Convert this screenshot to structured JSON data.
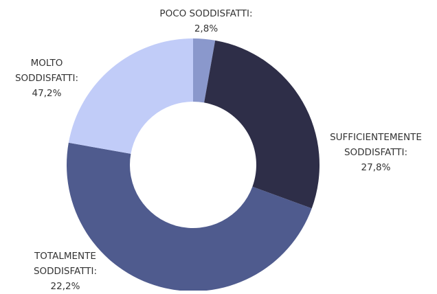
{
  "chart_data": {
    "type": "donut",
    "categories": [
      "POCO SODDISFATTI:",
      "SUFFICIENTEMENTE SODDISFATTI:",
      "MOLTO SODDISFATTI:",
      "TOTALMENTE SODDISFATTI:"
    ],
    "values": [
      2.8,
      27.8,
      47.2,
      22.2
    ],
    "value_labels": [
      "2,8%",
      "27,8%",
      "47,2%",
      "22,2%"
    ],
    "colors": [
      "#8a98cc",
      "#2e2e48",
      "#4f5b8e",
      "#c1ccf8"
    ]
  }
}
